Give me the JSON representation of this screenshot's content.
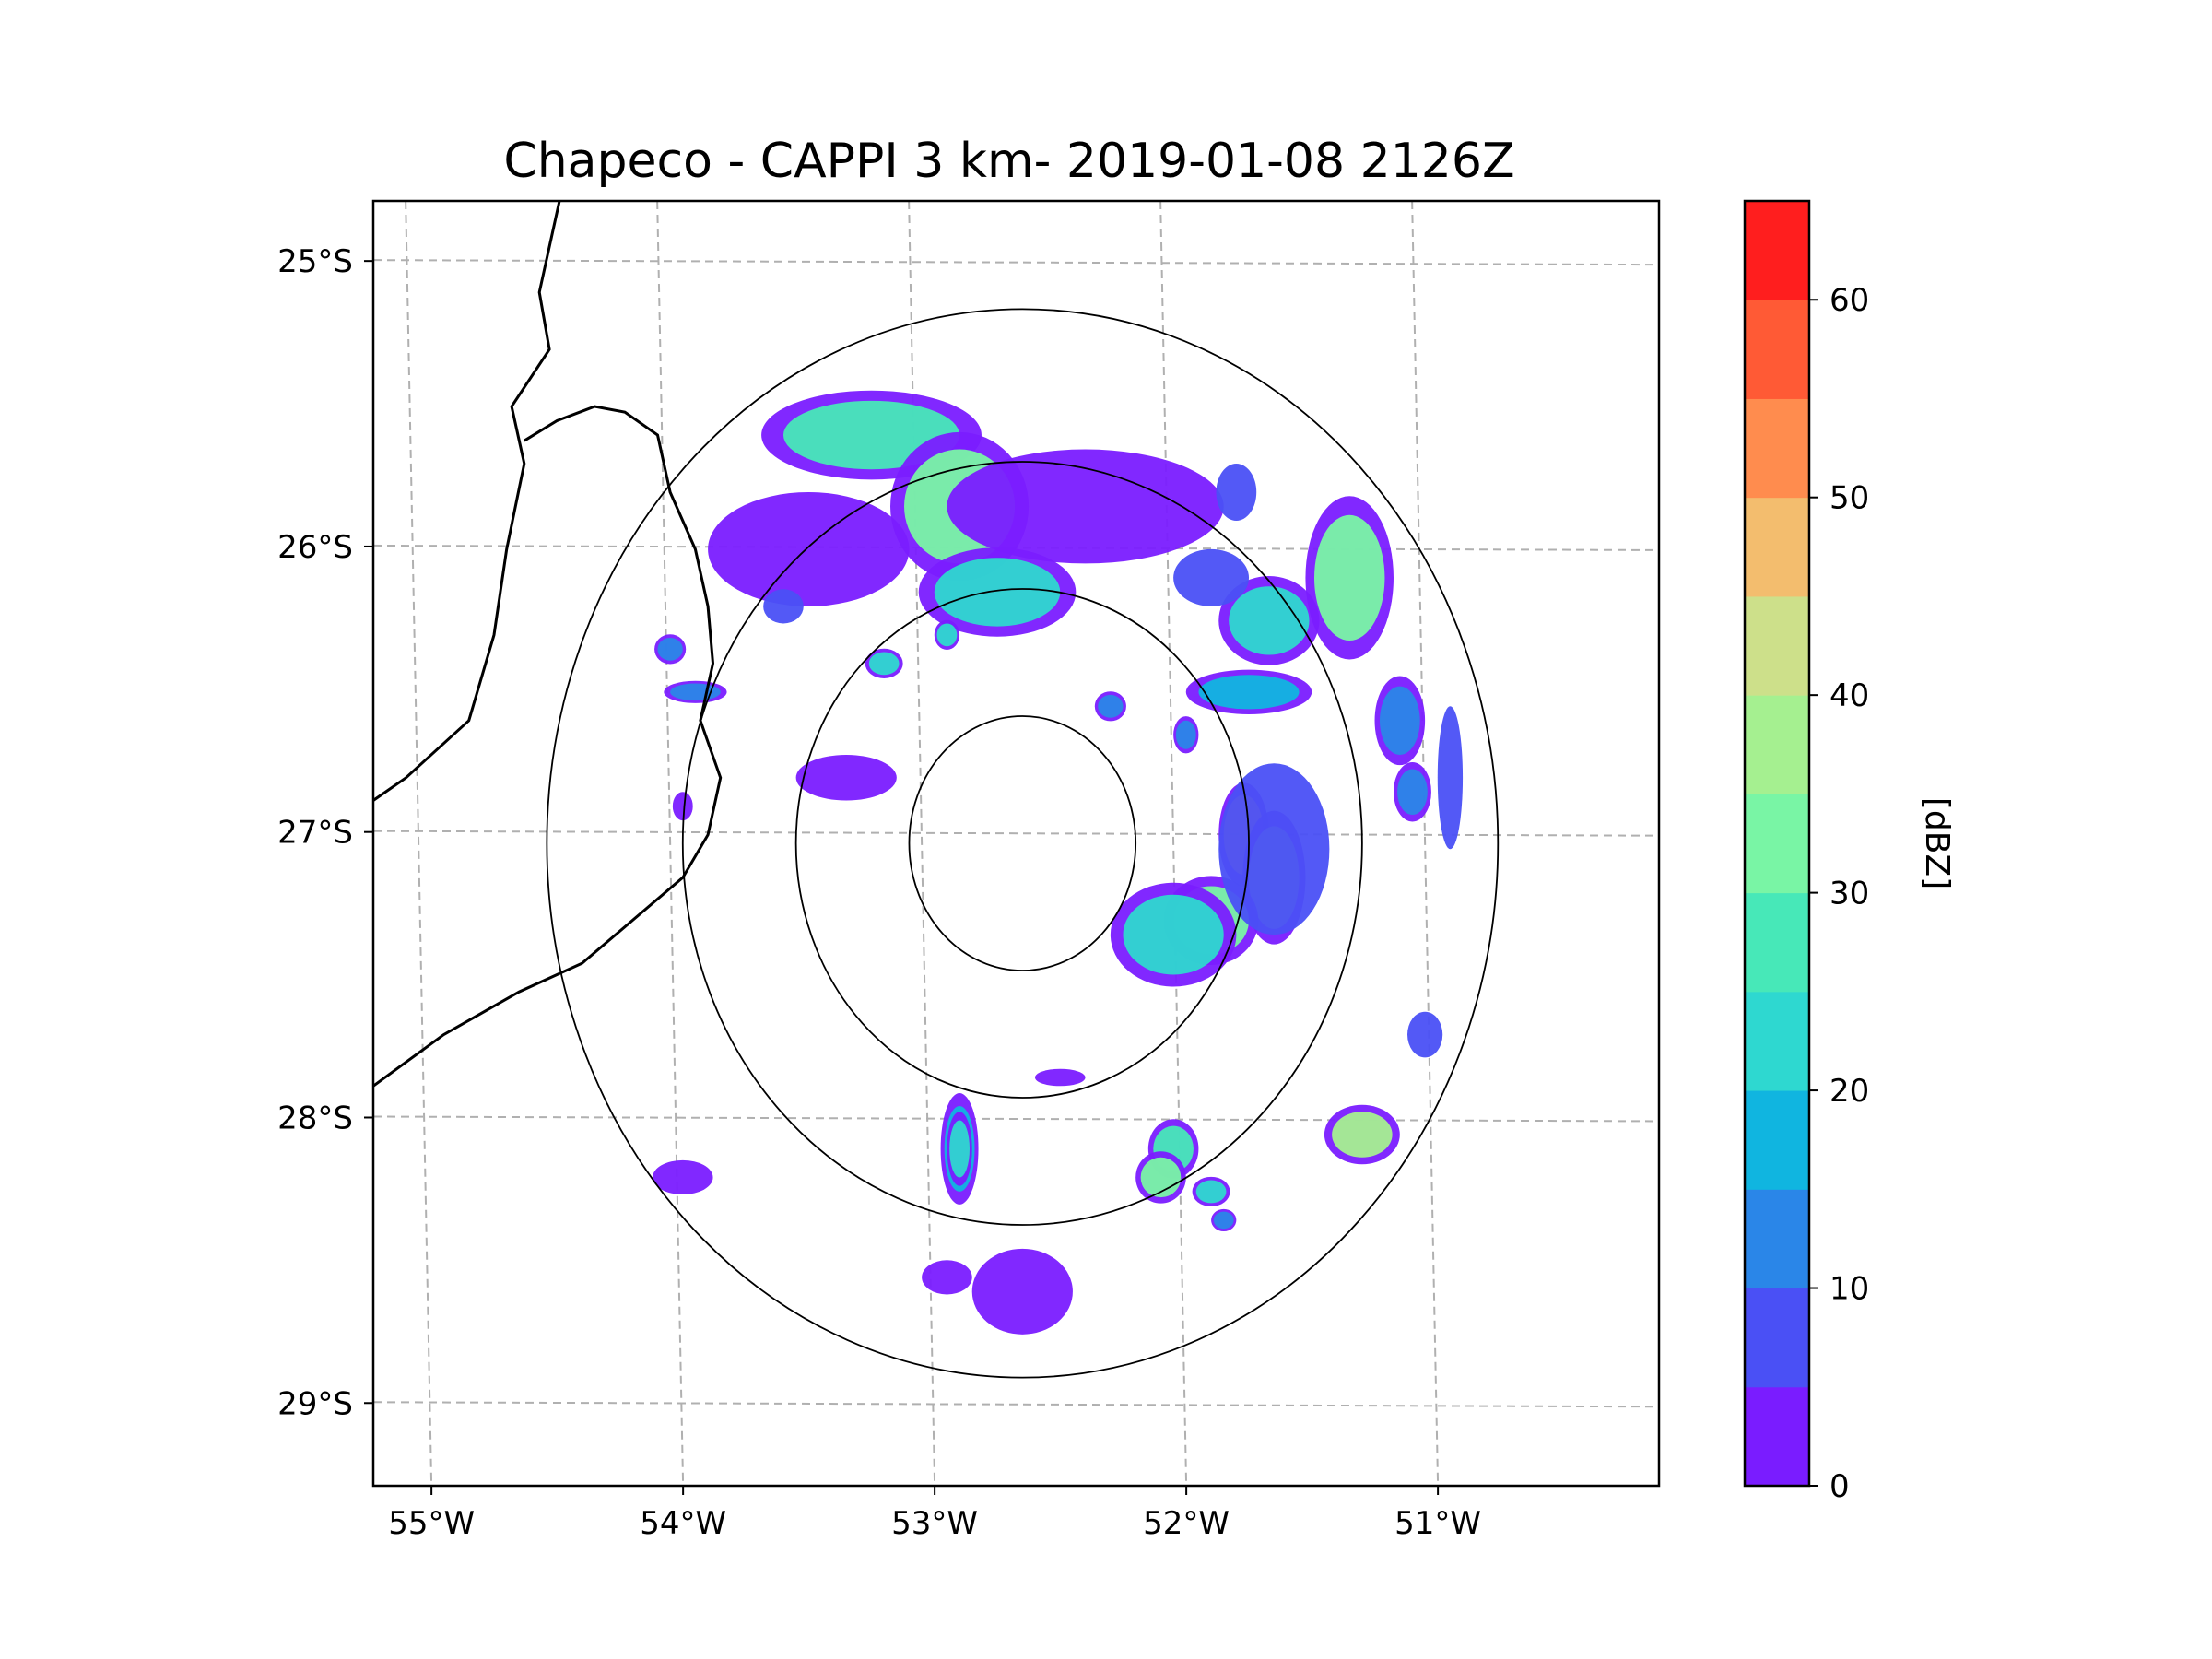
{
  "chart_data": {
    "type": "heatmap",
    "title": "Chapeco - CAPPI 3 km- 2019-01-08 2126Z",
    "x_ticks": [
      "55°W",
      "54°W",
      "53°W",
      "52°W",
      "51°W"
    ],
    "x_tick_values": [
      -55,
      -54,
      -53,
      -52,
      -51
    ],
    "y_ticks": [
      "25°S",
      "26°S",
      "27°S",
      "28°S",
      "29°S"
    ],
    "y_tick_values": [
      -25,
      -26,
      -27,
      -28,
      -29
    ],
    "xlim": [
      -55.18,
      -50.07
    ],
    "ylim": [
      -29.28,
      -24.78
    ],
    "radar_center": {
      "lon": -52.6,
      "lat": -27.03
    },
    "range_rings_deg": [
      0.45,
      0.9,
      1.35,
      1.89
    ],
    "grid": true,
    "colorbar": {
      "label": "[dBZ]",
      "ticks": [
        "0",
        "10",
        "20",
        "30",
        "40",
        "50",
        "60"
      ],
      "tick_values": [
        0,
        10,
        20,
        30,
        40,
        50,
        60
      ],
      "vmin": 0,
      "vmax": 65,
      "bins": [
        {
          "from": 0,
          "to": 5,
          "color": "#7A1CFF"
        },
        {
          "from": 5,
          "to": 10,
          "color": "#4A50F5"
        },
        {
          "from": 10,
          "to": 15,
          "color": "#2A86E8"
        },
        {
          "from": 15,
          "to": 20,
          "color": "#10B5E0"
        },
        {
          "from": 20,
          "to": 25,
          "color": "#2ED8D0"
        },
        {
          "from": 25,
          "to": 30,
          "color": "#47E8B8"
        },
        {
          "from": 30,
          "to": 35,
          "color": "#79F5A5"
        },
        {
          "from": 35,
          "to": 40,
          "color": "#A5F090"
        },
        {
          "from": 40,
          "to": 45,
          "color": "#CDE08A"
        },
        {
          "from": 45,
          "to": 50,
          "color": "#F3BD6E"
        },
        {
          "from": 50,
          "to": 55,
          "color": "#FF8C4E"
        },
        {
          "from": 55,
          "to": 60,
          "color": "#FF5A35"
        },
        {
          "from": 60,
          "to": 65,
          "color": "#FF1E1E"
        }
      ]
    },
    "echoes": [
      {
        "lon": -53.2,
        "lat": -25.6,
        "rx": 0.35,
        "ry": 0.12,
        "dbz": 25
      },
      {
        "lon": -52.85,
        "lat": -25.85,
        "rx": 0.22,
        "ry": 0.2,
        "dbz": 30
      },
      {
        "lon": -52.35,
        "lat": -25.85,
        "rx": 0.55,
        "ry": 0.2,
        "dbz": 2
      },
      {
        "lon": -53.45,
        "lat": -26.0,
        "rx": 0.4,
        "ry": 0.2,
        "dbz": 3
      },
      {
        "lon": -52.7,
        "lat": -26.15,
        "rx": 0.25,
        "ry": 0.12,
        "dbz": 22
      },
      {
        "lon": -51.3,
        "lat": -26.1,
        "rx": 0.14,
        "ry": 0.22,
        "dbz": 32
      },
      {
        "lon": -51.62,
        "lat": -26.25,
        "rx": 0.16,
        "ry": 0.12,
        "dbz": 22
      },
      {
        "lon": -51.85,
        "lat": -26.1,
        "rx": 0.15,
        "ry": 0.1,
        "dbz": 8
      },
      {
        "lon": -51.75,
        "lat": -25.8,
        "rx": 0.08,
        "ry": 0.1,
        "dbz": 6
      },
      {
        "lon": -51.7,
        "lat": -26.5,
        "rx": 0.2,
        "ry": 0.06,
        "dbz": 18
      },
      {
        "lon": -51.1,
        "lat": -26.6,
        "rx": 0.08,
        "ry": 0.12,
        "dbz": 12
      },
      {
        "lon": -51.05,
        "lat": -26.85,
        "rx": 0.06,
        "ry": 0.08,
        "dbz": 10
      },
      {
        "lon": -50.9,
        "lat": -26.8,
        "rx": 0.05,
        "ry": 0.25,
        "dbz": 8
      },
      {
        "lon": -51.72,
        "lat": -27.0,
        "rx": 0.08,
        "ry": 0.14,
        "dbz": 48
      },
      {
        "lon": -51.6,
        "lat": -27.15,
        "rx": 0.1,
        "ry": 0.18,
        "dbz": 38
      },
      {
        "lon": -51.85,
        "lat": -27.3,
        "rx": 0.15,
        "ry": 0.12,
        "dbz": 30
      },
      {
        "lon": -52.0,
        "lat": -27.35,
        "rx": 0.2,
        "ry": 0.14,
        "dbz": 22
      },
      {
        "lon": -51.6,
        "lat": -27.05,
        "rx": 0.22,
        "ry": 0.3,
        "dbz": 8
      },
      {
        "lon": -51.0,
        "lat": -27.7,
        "rx": 0.07,
        "ry": 0.08,
        "dbz": 8
      },
      {
        "lon": -51.25,
        "lat": -28.05,
        "rx": 0.12,
        "ry": 0.08,
        "dbz": 36
      },
      {
        "lon": -52.0,
        "lat": -28.1,
        "rx": 0.08,
        "ry": 0.08,
        "dbz": 28
      },
      {
        "lon": -52.05,
        "lat": -28.2,
        "rx": 0.08,
        "ry": 0.07,
        "dbz": 30
      },
      {
        "lon": -51.85,
        "lat": -28.25,
        "rx": 0.06,
        "ry": 0.04,
        "dbz": 22
      },
      {
        "lon": -51.8,
        "lat": -28.35,
        "rx": 0.04,
        "ry": 0.03,
        "dbz": 12
      },
      {
        "lon": -52.85,
        "lat": -28.1,
        "rx": 0.06,
        "ry": 0.15,
        "dbz": 15
      },
      {
        "lon": -52.85,
        "lat": -28.1,
        "rx": 0.04,
        "ry": 0.1,
        "dbz": 20
      },
      {
        "lon": -53.15,
        "lat": -26.4,
        "rx": 0.06,
        "ry": 0.04,
        "dbz": 22
      },
      {
        "lon": -52.9,
        "lat": -26.3,
        "rx": 0.04,
        "ry": 0.04,
        "dbz": 20
      },
      {
        "lon": -52.25,
        "lat": -26.55,
        "rx": 0.05,
        "ry": 0.04,
        "dbz": 14
      },
      {
        "lon": -51.95,
        "lat": -26.65,
        "rx": 0.04,
        "ry": 0.05,
        "dbz": 10
      },
      {
        "lon": -53.9,
        "lat": -26.5,
        "rx": 0.1,
        "ry": 0.03,
        "dbz": 12
      },
      {
        "lon": -54.0,
        "lat": -26.35,
        "rx": 0.05,
        "ry": 0.04,
        "dbz": 10
      },
      {
        "lon": -53.95,
        "lat": -28.2,
        "rx": 0.12,
        "ry": 0.06,
        "dbz": 4
      },
      {
        "lon": -52.45,
        "lat": -27.85,
        "rx": 0.1,
        "ry": 0.03,
        "dbz": 2
      },
      {
        "lon": -52.6,
        "lat": -28.6,
        "rx": 0.2,
        "ry": 0.15,
        "dbz": 2
      },
      {
        "lon": -53.3,
        "lat": -26.8,
        "rx": 0.2,
        "ry": 0.08,
        "dbz": 3
      },
      {
        "lon": -53.55,
        "lat": -26.2,
        "rx": 0.08,
        "ry": 0.06,
        "dbz": 6
      },
      {
        "lon": -53.95,
        "lat": -26.9,
        "rx": 0.04,
        "ry": 0.05,
        "dbz": 4
      },
      {
        "lon": -52.9,
        "lat": -28.55,
        "rx": 0.1,
        "ry": 0.06,
        "dbz": 3
      }
    ],
    "borders": [
      [
        [
          -54.44,
          -24.78
        ],
        [
          -54.52,
          -25.1
        ],
        [
          -54.48,
          -25.3
        ],
        [
          -54.63,
          -25.5
        ],
        [
          -54.58,
          -25.7
        ],
        [
          -54.65,
          -26.0
        ],
        [
          -54.7,
          -26.3
        ],
        [
          -54.8,
          -26.6
        ],
        [
          -55.05,
          -26.8
        ],
        [
          -55.18,
          -26.88
        ]
      ],
      [
        [
          -54.58,
          -25.62
        ],
        [
          -54.45,
          -25.55
        ],
        [
          -54.3,
          -25.5
        ],
        [
          -54.18,
          -25.52
        ],
        [
          -54.05,
          -25.6
        ],
        [
          -54.0,
          -25.8
        ],
        [
          -53.9,
          -26.0
        ],
        [
          -53.85,
          -26.2
        ],
        [
          -53.83,
          -26.4
        ],
        [
          -53.88,
          -26.6
        ],
        [
          -53.8,
          -26.8
        ],
        [
          -53.85,
          -27.0
        ],
        [
          -53.95,
          -27.15
        ],
        [
          -54.15,
          -27.3
        ],
        [
          -54.35,
          -27.45
        ],
        [
          -54.6,
          -27.55
        ],
        [
          -54.9,
          -27.7
        ],
        [
          -55.18,
          -27.88
        ]
      ]
    ]
  }
}
